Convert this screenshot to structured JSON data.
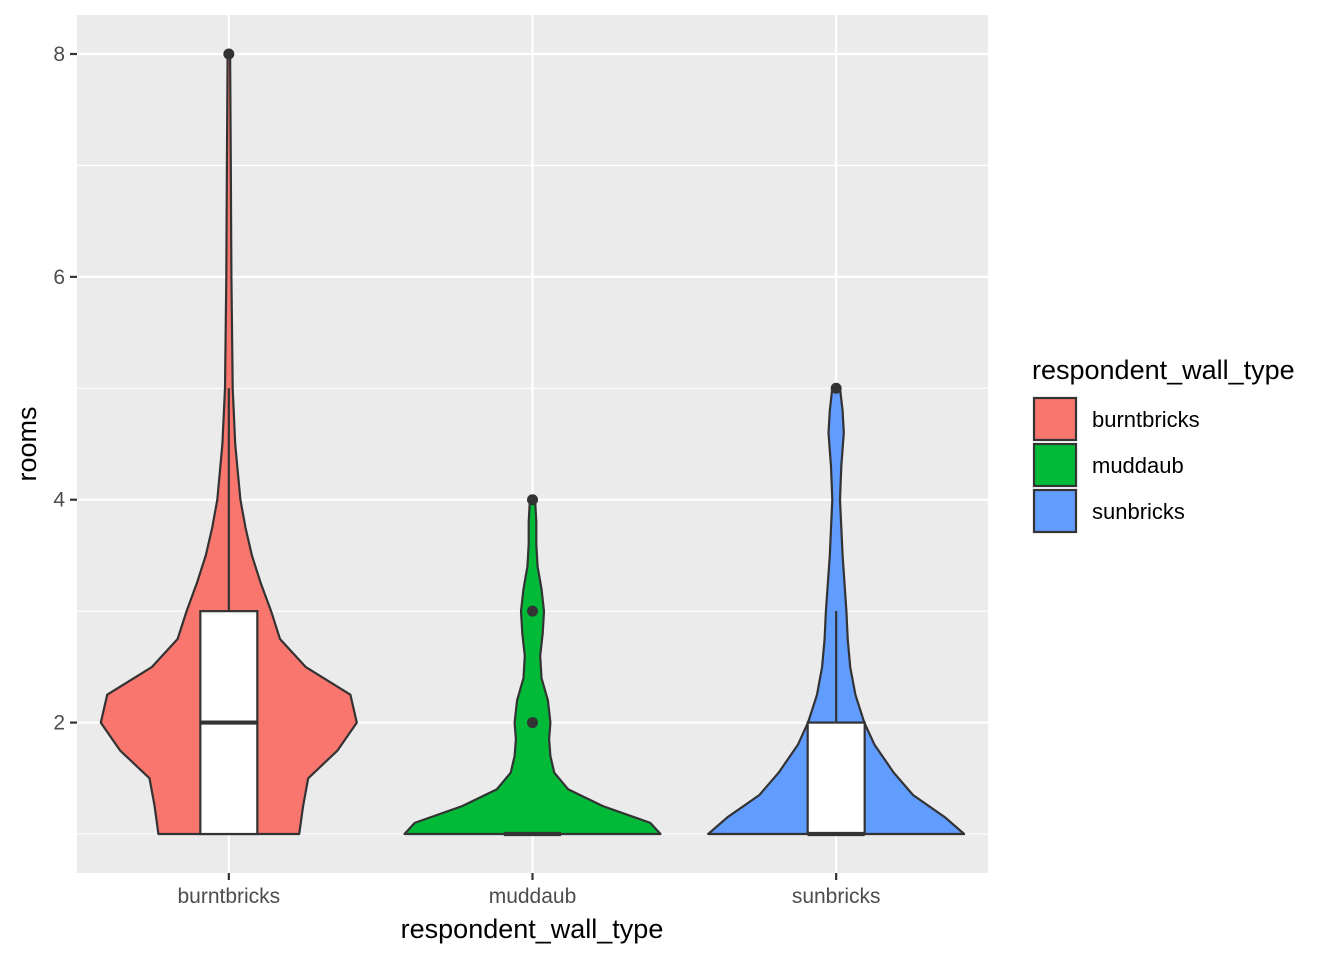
{
  "chart_data": {
    "type": "violin",
    "xlabel": "respondent_wall_type",
    "ylabel": "rooms",
    "categories": [
      "burntbricks",
      "muddaub",
      "sunbricks"
    ],
    "ylim": [
      0.65,
      8.35
    ],
    "y_ticks": [
      2,
      4,
      6,
      8
    ],
    "y_tick_labels": [
      "2",
      "4",
      "6",
      "8"
    ],
    "grid": true,
    "legend": {
      "title": "respondent_wall_type",
      "position": "right",
      "entries": [
        {
          "label": "burntbricks",
          "color": "#F8766D"
        },
        {
          "label": "muddaub",
          "color": "#00BA38"
        },
        {
          "label": "sunbricks",
          "color": "#619CFF"
        }
      ]
    },
    "groups": [
      {
        "category": "burntbricks",
        "color": "#F8766D",
        "density": [
          [
            1,
            0.55
          ],
          [
            1.25,
            0.58
          ],
          [
            1.5,
            0.62
          ],
          [
            1.75,
            0.85
          ],
          [
            2,
            1.0
          ],
          [
            2.25,
            0.95
          ],
          [
            2.5,
            0.6
          ],
          [
            2.75,
            0.4
          ],
          [
            3,
            0.33
          ],
          [
            3.25,
            0.25
          ],
          [
            3.5,
            0.18
          ],
          [
            3.75,
            0.13
          ],
          [
            4,
            0.09
          ],
          [
            4.5,
            0.05
          ],
          [
            5,
            0.03
          ],
          [
            6,
            0.02
          ],
          [
            7,
            0.015
          ],
          [
            8,
            0.01
          ]
        ],
        "box": {
          "q1": 1,
          "median": 2,
          "q3": 3,
          "whisker_low": 1,
          "whisker_high": 5
        },
        "outliers": [
          8
        ]
      },
      {
        "category": "muddaub",
        "color": "#00BA38",
        "density": [
          [
            1,
            1.0
          ],
          [
            1.1,
            0.92
          ],
          [
            1.25,
            0.55
          ],
          [
            1.4,
            0.28
          ],
          [
            1.55,
            0.17
          ],
          [
            1.7,
            0.14
          ],
          [
            1.85,
            0.13
          ],
          [
            2,
            0.14
          ],
          [
            2.2,
            0.12
          ],
          [
            2.4,
            0.07
          ],
          [
            2.6,
            0.06
          ],
          [
            2.8,
            0.08
          ],
          [
            3,
            0.09
          ],
          [
            3.2,
            0.07
          ],
          [
            3.4,
            0.04
          ],
          [
            3.6,
            0.03
          ],
          [
            3.8,
            0.03
          ],
          [
            4,
            0.02
          ]
        ],
        "box": {
          "q1": 1,
          "median": 1,
          "q3": 1,
          "whisker_low": 1,
          "whisker_high": 1
        },
        "outliers": [
          2,
          3,
          4
        ]
      },
      {
        "category": "sunbricks",
        "color": "#619CFF",
        "density": [
          [
            1,
            1.0
          ],
          [
            1.15,
            0.85
          ],
          [
            1.35,
            0.6
          ],
          [
            1.55,
            0.45
          ],
          [
            1.8,
            0.3
          ],
          [
            2,
            0.22
          ],
          [
            2.25,
            0.15
          ],
          [
            2.5,
            0.11
          ],
          [
            2.75,
            0.09
          ],
          [
            3,
            0.08
          ],
          [
            3.5,
            0.05
          ],
          [
            4,
            0.03
          ],
          [
            4.3,
            0.04
          ],
          [
            4.6,
            0.06
          ],
          [
            4.8,
            0.05
          ],
          [
            5,
            0.03
          ]
        ],
        "box": {
          "q1": 1,
          "median": 1,
          "q3": 2,
          "whisker_low": 1,
          "whisker_high": 3
        },
        "outliers": [
          5
        ]
      }
    ]
  }
}
